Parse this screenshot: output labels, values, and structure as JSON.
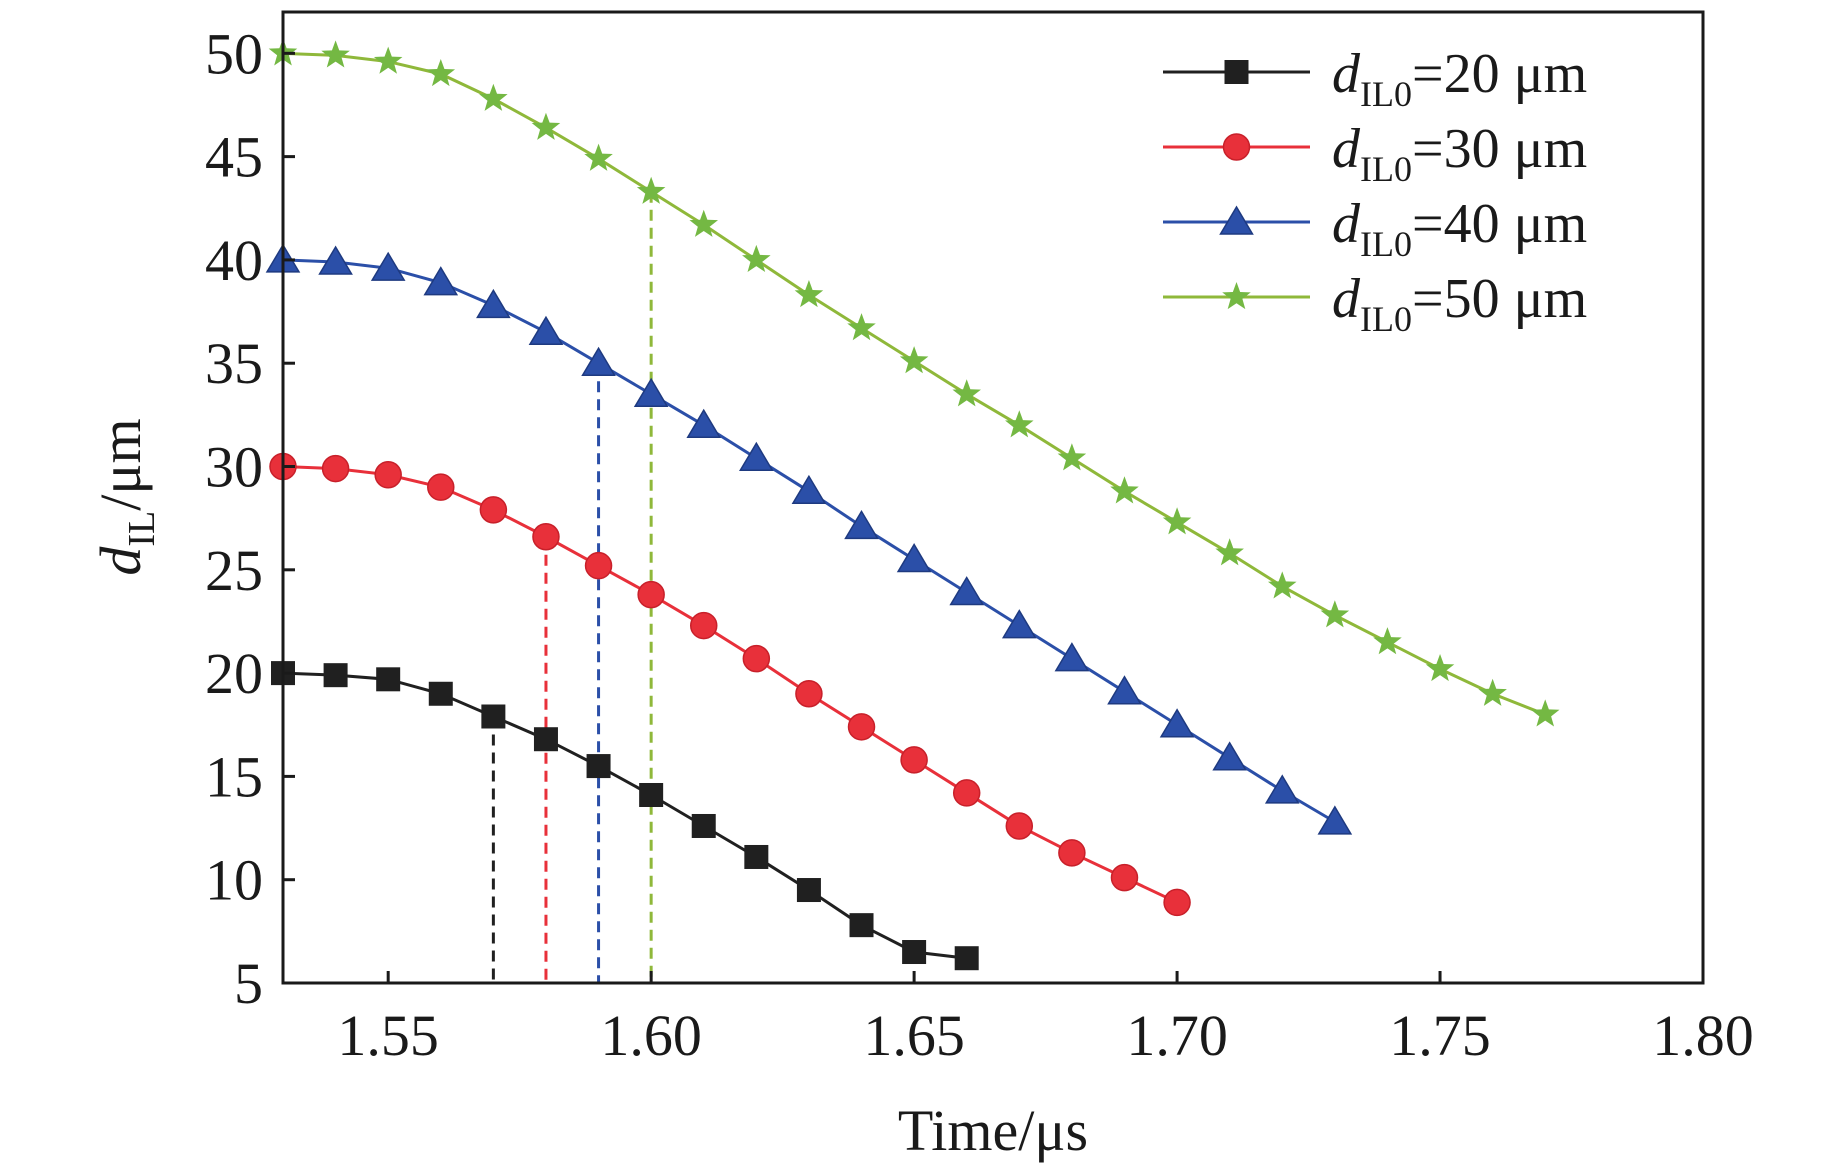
{
  "chart_data": {
    "type": "line",
    "title": "",
    "xlabel": "Time/μs",
    "ylabel": {
      "main": "d",
      "sub": "IL",
      "unit": "/μm"
    },
    "xlim": [
      1.53,
      1.8
    ],
    "ylim": [
      5,
      52
    ],
    "xticks": [
      1.55,
      1.6,
      1.65,
      1.7,
      1.75,
      1.8
    ],
    "xtick_labels": [
      "1.55",
      "1.60",
      "1.65",
      "1.70",
      "1.75",
      "1.80"
    ],
    "yticks": [
      5,
      10,
      15,
      20,
      25,
      30,
      35,
      40,
      45,
      50
    ],
    "ytick_labels": [
      "5",
      "10",
      "15",
      "20",
      "25",
      "30",
      "35",
      "40",
      "45",
      "50"
    ],
    "legend_position": "top-right",
    "series": [
      {
        "name": "dIL0=20 μm",
        "legend": {
          "main": "d",
          "sub": "IL0",
          "rest": "=20 μm"
        },
        "color": "#202020",
        "marker": "square",
        "x": [
          1.53,
          1.54,
          1.55,
          1.56,
          1.57,
          1.58,
          1.59,
          1.6,
          1.61,
          1.62,
          1.63,
          1.64,
          1.65,
          1.66
        ],
        "y": [
          20.0,
          19.9,
          19.7,
          19.0,
          17.9,
          16.8,
          15.5,
          14.1,
          12.6,
          11.1,
          9.5,
          7.8,
          6.5,
          6.2
        ]
      },
      {
        "name": "dIL0=30 μm",
        "legend": {
          "main": "d",
          "sub": "IL0",
          "rest": "=30 μm"
        },
        "color": "#e8303a",
        "marker": "circle",
        "x": [
          1.53,
          1.54,
          1.55,
          1.56,
          1.57,
          1.58,
          1.59,
          1.6,
          1.61,
          1.62,
          1.63,
          1.64,
          1.65,
          1.66,
          1.67,
          1.68,
          1.69,
          1.7
        ],
        "y": [
          30.0,
          29.9,
          29.6,
          29.0,
          27.9,
          26.6,
          25.2,
          23.8,
          22.3,
          20.7,
          19.0,
          17.4,
          15.8,
          14.2,
          12.6,
          11.3,
          10.1,
          8.9
        ]
      },
      {
        "name": "dIL0=40 μm",
        "legend": {
          "main": "d",
          "sub": "IL0",
          "rest": "=40 μm"
        },
        "color": "#2b4fa8",
        "marker": "triangle",
        "x": [
          1.53,
          1.54,
          1.55,
          1.56,
          1.57,
          1.58,
          1.59,
          1.6,
          1.61,
          1.62,
          1.63,
          1.64,
          1.65,
          1.66,
          1.67,
          1.68,
          1.69,
          1.7,
          1.71,
          1.72,
          1.73
        ],
        "y": [
          40.0,
          39.9,
          39.6,
          38.9,
          37.8,
          36.5,
          35.0,
          33.5,
          32.0,
          30.4,
          28.8,
          27.1,
          25.5,
          23.9,
          22.3,
          20.7,
          19.1,
          17.5,
          15.9,
          14.3,
          12.8
        ]
      },
      {
        "name": "dIL0=50 μm",
        "legend": {
          "main": "d",
          "sub": "IL0",
          "rest": "=50 μm"
        },
        "color": "#8fb83a",
        "marker_color": "#74b843",
        "marker": "star",
        "x": [
          1.53,
          1.54,
          1.55,
          1.56,
          1.57,
          1.58,
          1.59,
          1.6,
          1.61,
          1.62,
          1.63,
          1.64,
          1.65,
          1.66,
          1.67,
          1.68,
          1.69,
          1.7,
          1.71,
          1.72,
          1.73,
          1.74,
          1.75,
          1.76,
          1.77
        ],
        "y": [
          50.0,
          49.9,
          49.6,
          49.0,
          47.8,
          46.4,
          44.9,
          43.3,
          41.7,
          40.0,
          38.3,
          36.7,
          35.1,
          33.5,
          32.0,
          30.4,
          28.8,
          27.3,
          25.8,
          24.2,
          22.8,
          21.5,
          20.2,
          19.0,
          18.0
        ]
      }
    ],
    "reference_lines": [
      {
        "x": 1.57,
        "y_top": 17.9,
        "color": "#202020"
      },
      {
        "x": 1.58,
        "y_top": 26.6,
        "color": "#e8303a"
      },
      {
        "x": 1.59,
        "y_top": 35.0,
        "color": "#2b4fa8"
      },
      {
        "x": 1.6,
        "y_top": 43.3,
        "color": "#8fb83a"
      }
    ]
  }
}
